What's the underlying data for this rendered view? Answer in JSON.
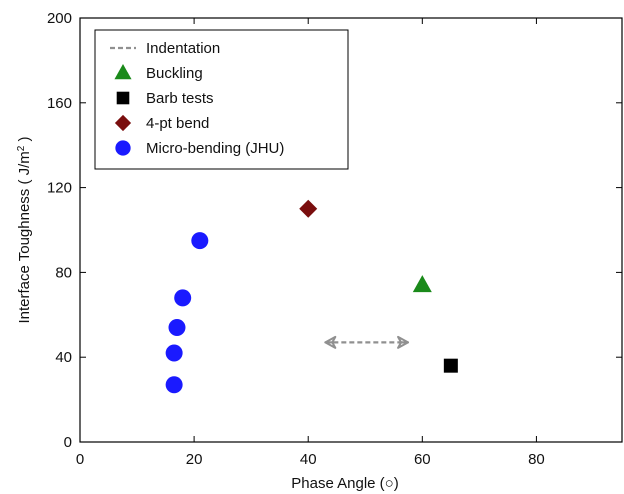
{
  "chart_data": {
    "type": "scatter",
    "xlabel": "Phase Angle (○)",
    "ylabel_main": "Interface Toughness ( J/m",
    "ylabel_sup": "2",
    "ylabel_end": " )",
    "xlim": [
      0,
      95
    ],
    "ylim": [
      0,
      200
    ],
    "x_ticks": [
      0,
      20,
      40,
      60,
      80
    ],
    "y_ticks": [
      0,
      40,
      80,
      120,
      160,
      200
    ],
    "x_tick_labels": [
      "0",
      "20",
      "40",
      "60",
      "80"
    ],
    "y_tick_labels": [
      "0",
      "40",
      "80",
      "120",
      "160",
      "200"
    ],
    "grid": false,
    "legend_position": "top-left",
    "series": [
      {
        "name": "Indentation",
        "marker": "dashed-arrow",
        "color": "#909090",
        "x_range": [
          43,
          57.5
        ],
        "y": 47
      },
      {
        "name": "Buckling",
        "marker": "triangle",
        "color": "#1a8a1a",
        "points": [
          {
            "x": 60,
            "y": 74
          }
        ]
      },
      {
        "name": "Barb tests",
        "marker": "square",
        "color": "#000000",
        "points": [
          {
            "x": 65,
            "y": 36
          }
        ]
      },
      {
        "name": "4-pt bend",
        "marker": "diamond",
        "color": "#7a0e0e",
        "points": [
          {
            "x": 40,
            "y": 110
          }
        ]
      },
      {
        "name": "Micro-bending (JHU)",
        "marker": "circle",
        "color": "#1a1aff",
        "points": [
          {
            "x": 21,
            "y": 95
          },
          {
            "x": 18,
            "y": 68
          },
          {
            "x": 17,
            "y": 54
          },
          {
            "x": 16.5,
            "y": 42
          },
          {
            "x": 16.5,
            "y": 27
          }
        ]
      }
    ]
  }
}
